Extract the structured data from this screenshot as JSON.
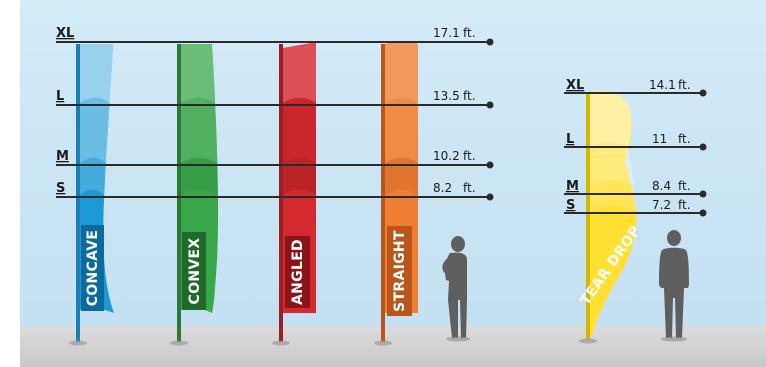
{
  "colors": {
    "sky": "#cde6f5",
    "floor": "#d6d6d6",
    "concave": "#1c9ad6",
    "convex": "#3aa64a",
    "angled": "#d42a2f",
    "straight": "#ef7d32",
    "teardrop": "#ffe033",
    "silhouette": "#5f5f5f",
    "line": "#2b2b2b"
  },
  "left_group": {
    "sizes": [
      {
        "size": "XL",
        "height": "17.1",
        "unit": "ft."
      },
      {
        "size": "L",
        "height": "13.5",
        "unit": "ft."
      },
      {
        "size": "M",
        "height": "10.2",
        "unit": "ft."
      },
      {
        "size": "S",
        "height": "8.2",
        "unit": "ft."
      }
    ],
    "flags": [
      {
        "label": "CONCAVE",
        "color": "#1c9ad6"
      },
      {
        "label": "CONVEX",
        "color": "#3aa64a"
      },
      {
        "label": "ANGLED",
        "color": "#d42a2f"
      },
      {
        "label": "STRAIGHT",
        "color": "#ef7d32"
      }
    ]
  },
  "right_group": {
    "sizes": [
      {
        "size": "XL",
        "height": "14.1",
        "unit": "ft."
      },
      {
        "size": "L",
        "height": "11",
        "unit": "ft."
      },
      {
        "size": "M",
        "height": "8.4",
        "unit": "ft."
      },
      {
        "size": "S",
        "height": "7.2",
        "unit": "ft."
      }
    ],
    "flags": [
      {
        "label": "TEAR DROP",
        "color": "#ffe033"
      }
    ]
  }
}
